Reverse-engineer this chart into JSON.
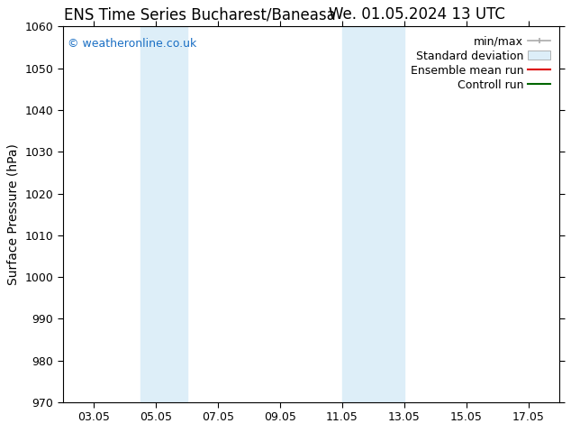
{
  "title_left": "ENS Time Series Bucharest/Baneasa",
  "title_right": "We. 01.05.2024 13 UTC",
  "ylabel": "Surface Pressure (hPa)",
  "ylim": [
    970,
    1060
  ],
  "yticks": [
    970,
    980,
    990,
    1000,
    1010,
    1020,
    1030,
    1040,
    1050,
    1060
  ],
  "xlim_start": 2.0,
  "xlim_end": 18.0,
  "xtick_labels": [
    "03.05",
    "05.05",
    "07.05",
    "09.05",
    "11.05",
    "13.05",
    "15.05",
    "17.05"
  ],
  "xtick_positions": [
    3,
    5,
    7,
    9,
    11,
    13,
    15,
    17
  ],
  "shaded_regions": [
    {
      "xmin": 4.5,
      "xmax": 6.0,
      "color": "#ddeef8"
    },
    {
      "xmin": 11.0,
      "xmax": 13.0,
      "color": "#ddeef8"
    }
  ],
  "watermark_text": "© weatheronline.co.uk",
  "watermark_color": "#1a6fc4",
  "legend_items": [
    {
      "label": "min/max",
      "color": "#aaaaaa",
      "type": "errorbar"
    },
    {
      "label": "Standard deviation",
      "color": "#ddeef8",
      "type": "bar"
    },
    {
      "label": "Ensemble mean run",
      "color": "#dd0000",
      "type": "line"
    },
    {
      "label": "Controll run",
      "color": "#006600",
      "type": "line"
    }
  ],
  "background_color": "#ffffff",
  "title_fontsize": 12,
  "axis_label_fontsize": 10,
  "tick_fontsize": 9,
  "legend_fontsize": 9,
  "watermark_fontsize": 9
}
